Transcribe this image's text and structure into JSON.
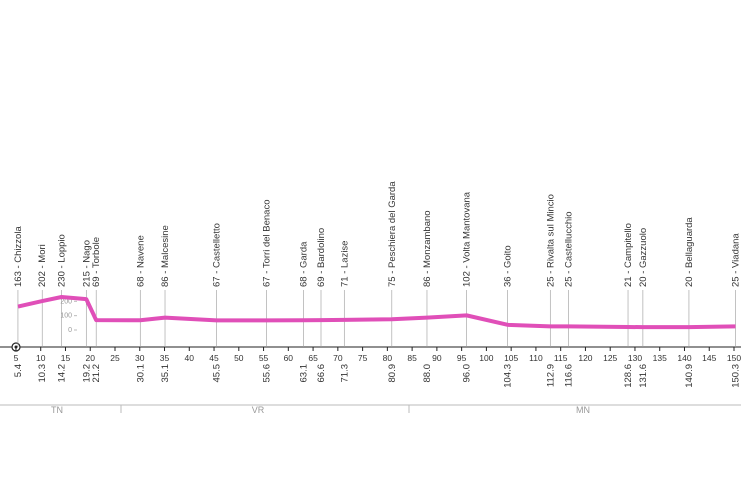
{
  "chart_data": {
    "type": "line",
    "x": [
      5.4,
      10.3,
      14.2,
      19.2,
      21.2,
      30.1,
      35.1,
      45.5,
      55.6,
      63.1,
      66.6,
      71.3,
      80.9,
      88.0,
      96.0,
      104.3,
      112.9,
      116.6,
      128.6,
      131.6,
      140.9,
      150.3
    ],
    "x_labels": [
      "5.4",
      "10.3",
      "14.2",
      "19.2",
      "21.2",
      "30.1",
      "35.1",
      "45.5",
      "55.6",
      "63.1",
      "66.6",
      "71.3",
      "80.9",
      "88.0",
      "96.0",
      "104.3",
      "112.9",
      "116.6",
      "128.6",
      "131.6",
      "140.9",
      "150.3"
    ],
    "series": [
      {
        "color": "#e04fb8",
        "values": [
          163,
          202,
          230,
          215,
          69,
          68,
          86,
          67,
          67,
          68,
          69,
          71,
          75,
          86,
          102,
          36,
          25,
          25,
          21,
          20,
          20,
          25
        ],
        "point_labels": [
          "163 - Chizzola",
          "202 - Mori",
          "230 - Loppio",
          "215 - Nago",
          "69 - Torbole",
          "68 - Navene",
          "86 - Malcesine",
          "67 - Castelletto",
          "67 - Torri del Benaco",
          "68 - Garda",
          "69 - Bardolino",
          "71 - Lazise",
          "75 - Peschiera del Garda",
          "86 - Monzambano",
          "102 - Volta Mantovana",
          "36 - Goito",
          "25 - Rivalta sul Mincio",
          "25 - Castellucchio",
          "21 - Campitello",
          "20 - Gazzuolo",
          "20 - Bellaguarda",
          "25 - Viadana"
        ]
      }
    ],
    "xlim": [
      0,
      150
    ],
    "xticks": [
      5,
      10,
      15,
      20,
      25,
      30,
      35,
      40,
      45,
      50,
      55,
      60,
      65,
      70,
      75,
      80,
      85,
      90,
      95,
      100,
      105,
      110,
      115,
      120,
      125,
      130,
      135,
      140,
      145,
      150
    ],
    "ylim": [
      0,
      230
    ],
    "yticks": [
      0,
      100,
      200
    ],
    "regions": [
      "TN",
      "VR",
      "MN"
    ]
  }
}
